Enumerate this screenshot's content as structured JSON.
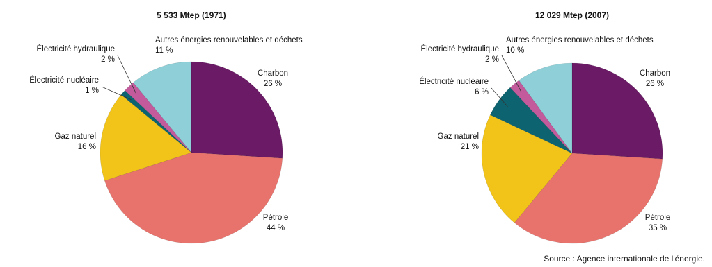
{
  "chart_data": [
    {
      "type": "pie",
      "title": "5 533 Mtep (1971)",
      "slices": [
        {
          "name": "Charbon",
          "value": 26,
          "label": "26 %"
        },
        {
          "name": "Pétrole",
          "value": 44,
          "label": "44 %"
        },
        {
          "name": "Gaz naturel",
          "value": 16,
          "label": "16 %"
        },
        {
          "name": "Électricité nucléaire",
          "value": 1,
          "label": "1 %"
        },
        {
          "name": "Électricité hydraulique",
          "value": 2,
          "label": "2 %"
        },
        {
          "name": "Autres énergies renouvelables et déchets",
          "value": 11,
          "label": "11 %"
        }
      ]
    },
    {
      "type": "pie",
      "title": "12 029 Mtep (2007)",
      "slices": [
        {
          "name": "Charbon",
          "value": 26,
          "label": "26 %"
        },
        {
          "name": "Pétrole",
          "value": 35,
          "label": "35 %"
        },
        {
          "name": "Gaz naturel",
          "value": 21,
          "label": "21 %"
        },
        {
          "name": "Électricité nucléaire",
          "value": 6,
          "label": "6 %"
        },
        {
          "name": "Électricité hydraulique",
          "value": 2,
          "label": "2 %"
        },
        {
          "name": "Autres énergies renouvelables et déchets",
          "value": 10,
          "label": "10 %"
        }
      ]
    }
  ],
  "colors": {
    "Charbon": "#6b1a66",
    "Pétrole": "#e8736c",
    "Gaz naturel": "#f2c419",
    "Électricité nucléaire": "#0d6470",
    "Électricité hydraulique": "#c25a9c",
    "Autres énergies renouvelables et déchets": "#8fd0d8"
  },
  "source": "Source : Agence internationale de l'énergie."
}
